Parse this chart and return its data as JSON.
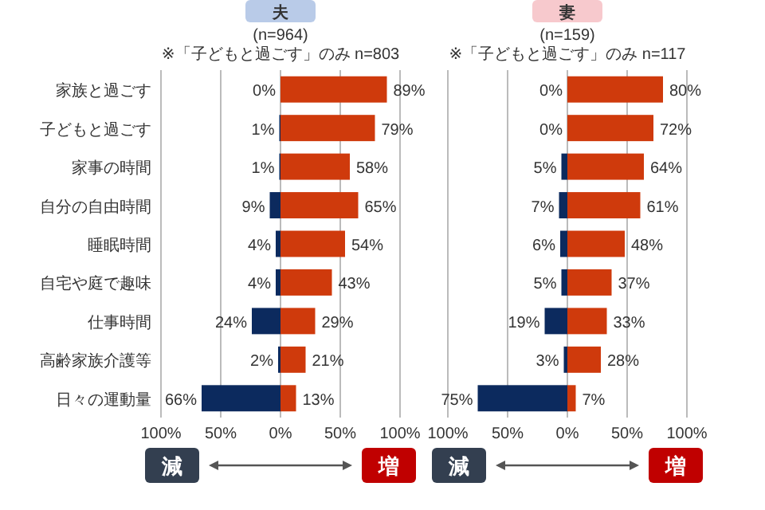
{
  "chart_data": [
    {
      "type": "bar",
      "orientation": "horizontal",
      "title": "夫",
      "subtitle": "(n=964)",
      "annotations": [
        "※「子どもと過ごす」のみ n=803",
        "減",
        "増"
      ],
      "categories": [
        "家族と過ごす",
        "子どもと過ごす",
        "家事の時間",
        "自分の自由時間",
        "睡眠時間",
        "自宅や庭で趣味",
        "仕事時間",
        "高齢家族介護等",
        "日々の運動量"
      ],
      "series": [
        {
          "color": "#0c2a5e",
          "values": [
            0,
            1,
            1,
            9,
            4,
            4,
            24,
            2,
            66
          ],
          "base": [
            null,
            -1,
            -1,
            -9,
            -4,
            -4,
            -24,
            -2,
            -66
          ],
          "value_labels": [
            "0%",
            "1%",
            "1%",
            "9%",
            "4%",
            "4%",
            "24%",
            "2%",
            "66%"
          ]
        },
        {
          "color": "#cf3a0c",
          "values": [
            89,
            79,
            58,
            65,
            54,
            43,
            29,
            21,
            13
          ],
          "value_labels": [
            "89%",
            "79%",
            "58%",
            "65%",
            "54%",
            "43%",
            "29%",
            "21%",
            "13%"
          ]
        }
      ],
      "xlim": [
        -100,
        100
      ],
      "xticks": [
        {
          "value": -100,
          "label": "100%"
        },
        {
          "value": -50,
          "label": "50%"
        },
        {
          "value": 0,
          "label": "0%"
        },
        {
          "value": 50,
          "label": "50%"
        },
        {
          "value": 100,
          "label": "100%"
        }
      ],
      "grid": "x"
    },
    {
      "type": "bar",
      "orientation": "horizontal",
      "title": "妻",
      "subtitle": "(n=159)",
      "annotations": [
        "※「子どもと過ごす」のみ n=117",
        "減",
        "増"
      ],
      "categories": [
        null,
        null,
        null,
        null,
        null,
        null,
        null,
        null,
        null
      ],
      "series": [
        {
          "color": "#0c2a5e",
          "values": [
            0,
            0,
            5,
            7,
            6,
            5,
            19,
            3,
            75
          ],
          "base": [
            null,
            null,
            -5,
            -7,
            -6,
            -5,
            -19,
            -3,
            -75
          ],
          "value_labels": [
            "0%",
            "0%",
            "5%",
            "7%",
            "6%",
            "5%",
            "19%",
            "3%",
            "75%"
          ]
        },
        {
          "color": "#cf3a0c",
          "values": [
            80,
            72,
            64,
            61,
            48,
            37,
            33,
            28,
            7
          ],
          "value_labels": [
            "80%",
            "72%",
            "64%",
            "61%",
            "48%",
            "37%",
            "33%",
            "28%",
            "7%"
          ]
        }
      ],
      "xlim": [
        -100,
        100
      ],
      "xticks": [
        {
          "value": -100,
          "label": "100%"
        },
        {
          "value": -50,
          "label": "50%"
        },
        {
          "value": 0,
          "label": "0%"
        },
        {
          "value": 50,
          "label": "50%"
        },
        {
          "value": 100,
          "label": "100%"
        }
      ],
      "grid": "x",
      "tick_labels": "x"
    }
  ]
}
